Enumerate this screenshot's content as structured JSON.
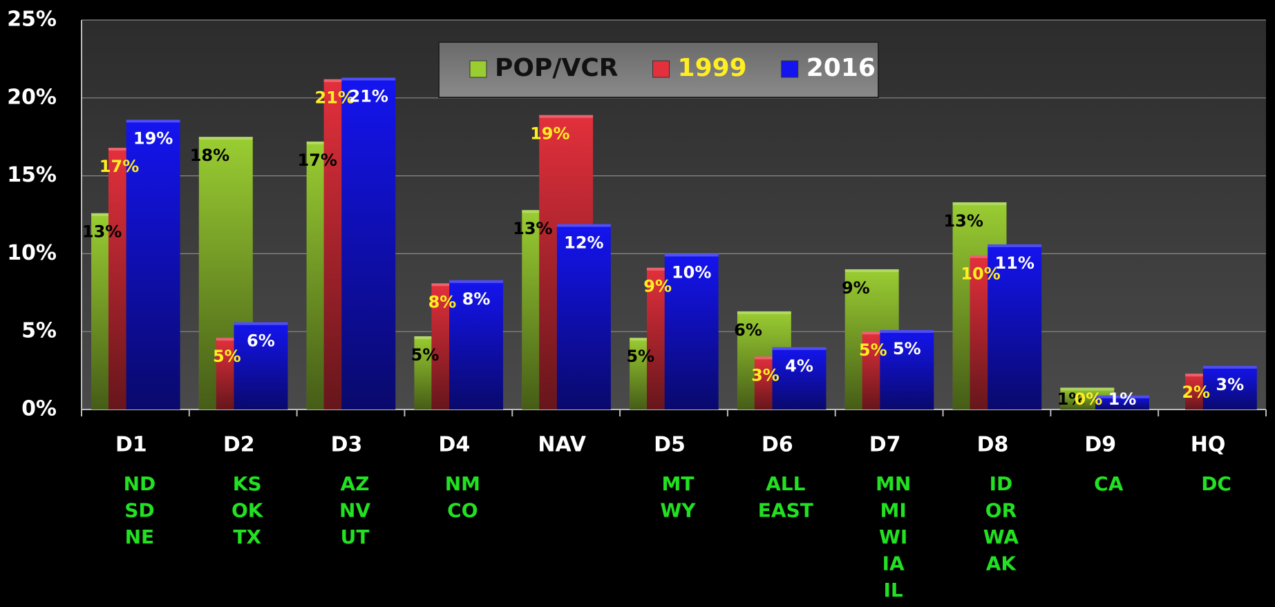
{
  "chart_data": {
    "type": "bar",
    "categories": [
      "D1",
      "D2",
      "D3",
      "D4",
      "NAV",
      "D5",
      "D6",
      "D7",
      "D8",
      "D9",
      "HQ"
    ],
    "sublabels": [
      [
        "ND",
        "SD",
        "NE"
      ],
      [
        "KS",
        "OK",
        "TX"
      ],
      [
        "AZ",
        "NV",
        "UT"
      ],
      [
        "NM",
        "CO"
      ],
      [],
      [
        "MT",
        "WY"
      ],
      [
        "ALL",
        "EAST"
      ],
      [
        "MN",
        "MI",
        "WI",
        "IA",
        "IL"
      ],
      [
        "ID",
        "OR",
        "WA",
        "AK"
      ],
      [
        "CA"
      ],
      [
        "DC"
      ]
    ],
    "series": [
      {
        "name": "POP/VCR",
        "color": "#9acd32",
        "label_color": "#000000",
        "values": [
          12.6,
          17.5,
          17.2,
          4.7,
          12.8,
          4.6,
          6.3,
          9.0,
          13.3,
          1.4,
          null
        ],
        "value_labels": [
          "13%",
          "18%",
          "17%",
          "5%",
          "13%",
          "5%",
          "6%",
          "9%",
          "13%",
          "1%",
          null
        ]
      },
      {
        "name": "1999",
        "color": "#e3303c",
        "label_color": "#ffee22",
        "values": [
          16.8,
          4.6,
          21.2,
          8.1,
          18.9,
          9.1,
          3.4,
          5.0,
          9.9,
          0,
          2.3
        ],
        "value_labels": [
          "17%",
          "5%",
          "21%",
          "8%",
          "19%",
          "9%",
          "3%",
          "5%",
          "10%",
          "0%",
          "2%"
        ]
      },
      {
        "name": "2016",
        "color": "#1414f0",
        "label_color": "#ffffff",
        "values": [
          18.6,
          5.6,
          21.3,
          8.3,
          11.9,
          10.0,
          4.0,
          5.1,
          10.6,
          0.9,
          2.8
        ],
        "value_labels": [
          "19%",
          "6%",
          "21%",
          "8%",
          "12%",
          "10%",
          "4%",
          "5%",
          "11%",
          "1%",
          "3%"
        ]
      }
    ],
    "ylim": [
      0,
      25
    ],
    "yticks": [
      {
        "value": 0,
        "label": "0%"
      },
      {
        "value": 5,
        "label": "5%"
      },
      {
        "value": 10,
        "label": "10%"
      },
      {
        "value": 15,
        "label": "15%"
      },
      {
        "value": 20,
        "label": "20%"
      },
      {
        "value": 25,
        "label": "25%"
      }
    ],
    "grid": true,
    "legend": "top"
  }
}
